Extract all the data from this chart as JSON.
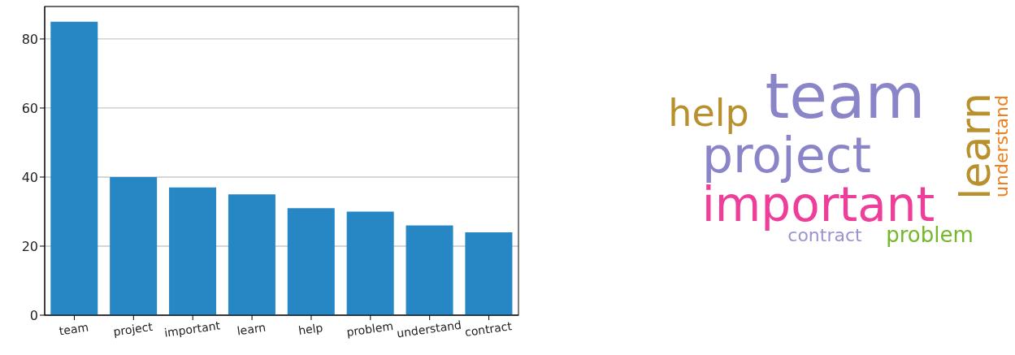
{
  "chart_data": [
    {
      "type": "bar",
      "categories": [
        "team",
        "project",
        "important",
        "learn",
        "help",
        "problem",
        "understand",
        "contract"
      ],
      "values": [
        85,
        40,
        37,
        35,
        31,
        30,
        26,
        24
      ],
      "color": "#2787c4",
      "ylim": [
        0,
        89.4
      ],
      "yticks": [
        0,
        20,
        40,
        60,
        80
      ],
      "grid": "y"
    },
    {
      "type": "other",
      "categories": [
        "team",
        "help",
        "project",
        "learn",
        "important",
        "understand",
        "contract",
        "problem"
      ],
      "colors": [
        "#8a85c8",
        "#b8902e",
        "#8a85c8",
        "#b8902e",
        "#ee3e9a",
        "#f07f1d",
        "#9a93d0",
        "#74b82a"
      ]
    }
  ]
}
